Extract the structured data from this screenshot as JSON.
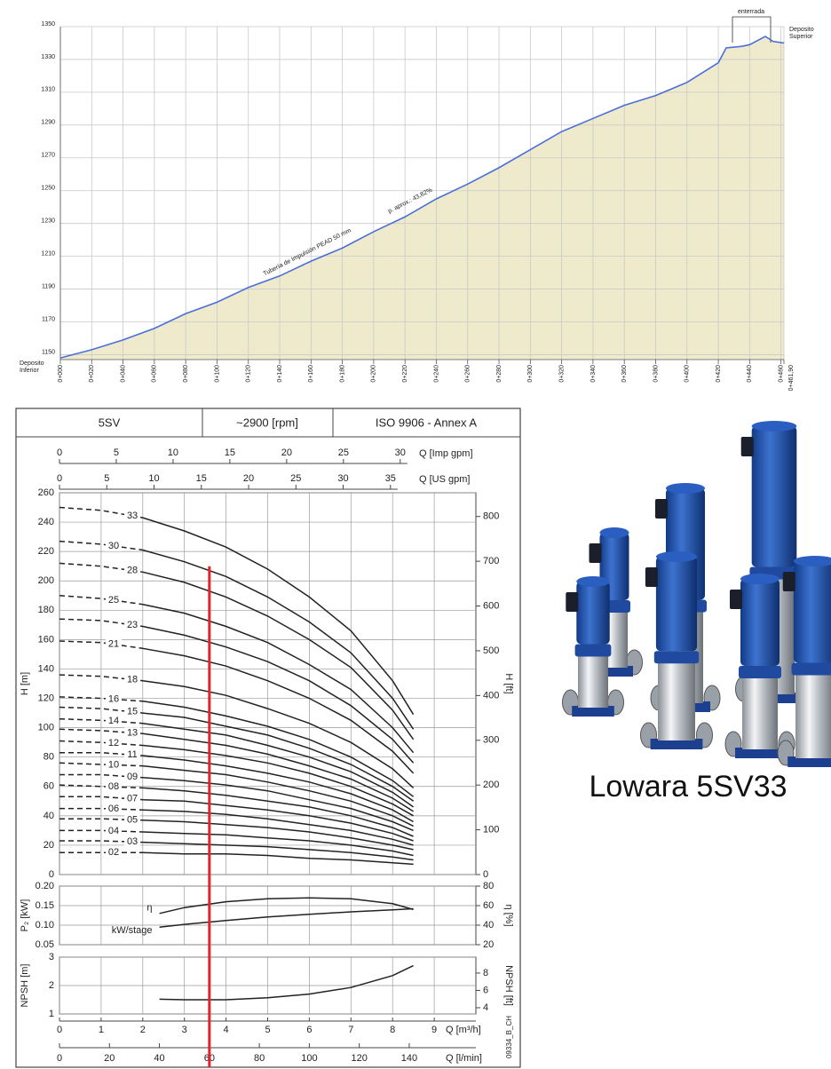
{
  "chart_data": [
    {
      "type": "area",
      "x": [
        0,
        20,
        40,
        60,
        80,
        100,
        120,
        140,
        160,
        180,
        200,
        220,
        240,
        260,
        280,
        300,
        320,
        340,
        360,
        380,
        400,
        420,
        425,
        435,
        440,
        450,
        455,
        461.9
      ],
      "values": [
        1148,
        1153,
        1159,
        1166,
        1175,
        1182,
        1191,
        1198,
        1207,
        1215,
        1225,
        1234,
        1245,
        1254,
        1264,
        1275,
        1286,
        1294,
        1302,
        1308,
        1316,
        1328,
        1337,
        1338,
        1339,
        1344,
        1341,
        1340
      ],
      "xlim": [
        0,
        461.9
      ],
      "ylim": [
        1147,
        1350
      ],
      "xticks": [
        {
          "value": 0,
          "label": "0+000"
        },
        {
          "value": 20,
          "label": "0+020"
        },
        {
          "value": 40,
          "label": "0+040"
        },
        {
          "value": 60,
          "label": "0+060"
        },
        {
          "value": 80,
          "label": "0+080"
        },
        {
          "value": 100,
          "label": "0+100"
        },
        {
          "value": 120,
          "label": "0+120"
        },
        {
          "value": 140,
          "label": "0+140"
        },
        {
          "value": 160,
          "label": "0+160"
        },
        {
          "value": 180,
          "label": "0+180"
        },
        {
          "value": 200,
          "label": "0+200"
        },
        {
          "value": 220,
          "label": "0+220"
        },
        {
          "value": 240,
          "label": "0+240"
        },
        {
          "value": 260,
          "label": "0+260"
        },
        {
          "value": 280,
          "label": "0+280"
        },
        {
          "value": 300,
          "label": "0+300"
        },
        {
          "value": 320,
          "label": "0+320"
        },
        {
          "value": 340,
          "label": "0+340"
        },
        {
          "value": 360,
          "label": "0+360"
        },
        {
          "value": 380,
          "label": "0+380"
        },
        {
          "value": 400,
          "label": "0+400"
        },
        {
          "value": 420,
          "label": "0+420"
        },
        {
          "value": 440,
          "label": "0+440"
        },
        {
          "value": 460,
          "label": "0+460"
        },
        {
          "value": 461.9,
          "label": "0+461,90"
        }
      ],
      "yticks": [
        1150,
        1170,
        1190,
        1210,
        1230,
        1250,
        1270,
        1290,
        1310,
        1330,
        1350
      ],
      "grid": true,
      "color": "#4a6fd8",
      "fill": "#eeeacb",
      "annotations": {
        "pipe": "Tubería de Impulsión PEAD 50 mm",
        "slope": "p. aprox.: 43,82%",
        "buried": "enterrada",
        "upper_tank": [
          "Deposito",
          "Superior"
        ],
        "lower_tank": [
          "Deposito",
          "Inferior"
        ]
      }
    },
    {
      "type": "line",
      "header": [
        "5SV",
        "~2900 [rpm]",
        "ISO 9906 - Annex A"
      ],
      "ylabel": "H [m]",
      "y2label": "H [ft]",
      "xlim": [
        0,
        10
      ],
      "ylim": [
        0,
        260
      ],
      "yticks": [
        0,
        20,
        40,
        60,
        80,
        100,
        120,
        140,
        160,
        180,
        200,
        220,
        240,
        260
      ],
      "y2lim": [
        0,
        853
      ],
      "y2ticks": [
        0,
        100,
        200,
        300,
        400,
        500,
        600,
        700,
        800
      ],
      "top_axes": [
        {
          "label": "Q [Imp gpm]",
          "xlim": [
            0,
            36.66
          ],
          "xticks": [
            0,
            5,
            10,
            15,
            20,
            25,
            30
          ]
        },
        {
          "label": "Q [US gpm]",
          "xlim": [
            0,
            44.03
          ],
          "xticks": [
            0,
            5,
            10,
            15,
            20,
            25,
            30,
            35
          ]
        }
      ],
      "x": [
        0,
        1,
        2,
        3,
        4,
        5,
        6,
        7,
        8,
        8.5
      ],
      "dashed_until": 2,
      "color": "#222",
      "grid": true,
      "series": [
        {
          "name": "33",
          "values": [
            250,
            248,
            243,
            234,
            223,
            208,
            189,
            166,
            132,
            109
          ]
        },
        {
          "name": "30",
          "values": [
            227,
            225,
            221,
            213,
            203,
            189,
            172,
            151,
            120,
            99
          ]
        },
        {
          "name": "28",
          "values": [
            212,
            210,
            206,
            199,
            189,
            176,
            160,
            141,
            112,
            92
          ]
        },
        {
          "name": "25",
          "values": [
            190,
            188,
            184,
            178,
            169,
            158,
            143,
            126,
            100,
            83
          ]
        },
        {
          "name": "23",
          "values": [
            174,
            173,
            169,
            163,
            155,
            145,
            132,
            115,
            92,
            76
          ]
        },
        {
          "name": "21",
          "values": [
            159,
            158,
            154,
            149,
            142,
            132,
            120,
            105,
            84,
            69
          ]
        },
        {
          "name": "18",
          "values": [
            136,
            135,
            132,
            128,
            122,
            113,
            103,
            90,
            72,
            59
          ]
        },
        {
          "name": "16",
          "values": [
            121,
            120,
            118,
            114,
            108,
            101,
            92,
            80,
            64,
            53
          ]
        },
        {
          "name": "15",
          "values": [
            114,
            113,
            110,
            107,
            101,
            95,
            86,
            75,
            60,
            50
          ]
        },
        {
          "name": "14",
          "values": [
            106,
            105,
            103,
            99,
            95,
            88,
            80,
            70,
            56,
            46
          ]
        },
        {
          "name": "13",
          "values": [
            99,
            98,
            96,
            92,
            88,
            82,
            74,
            65,
            52,
            43
          ]
        },
        {
          "name": "12",
          "values": [
            91,
            90,
            88,
            85,
            81,
            76,
            69,
            60,
            48,
            40
          ]
        },
        {
          "name": "11",
          "values": [
            83,
            83,
            81,
            78,
            74,
            69,
            63,
            55,
            44,
            36
          ]
        },
        {
          "name": "10",
          "values": [
            76,
            75,
            74,
            71,
            68,
            63,
            57,
            50,
            40,
            33
          ]
        },
        {
          "name": "09",
          "values": [
            68,
            68,
            66,
            64,
            61,
            57,
            51,
            45,
            36,
            30
          ]
        },
        {
          "name": "08",
          "values": [
            61,
            60,
            59,
            57,
            54,
            50,
            46,
            40,
            32,
            26
          ]
        },
        {
          "name": "07",
          "values": [
            53,
            53,
            51,
            50,
            47,
            44,
            40,
            35,
            28,
            23
          ]
        },
        {
          "name": "06",
          "values": [
            45,
            45,
            44,
            43,
            41,
            38,
            34,
            30,
            24,
            20
          ]
        },
        {
          "name": "05",
          "values": [
            38,
            38,
            37,
            36,
            34,
            32,
            29,
            25,
            20,
            17
          ]
        },
        {
          "name": "04",
          "values": [
            30,
            30,
            29,
            28,
            27,
            25,
            23,
            20,
            16,
            13
          ]
        },
        {
          "name": "03",
          "values": [
            23,
            23,
            22,
            21,
            20,
            19,
            17,
            15,
            12,
            10
          ]
        },
        {
          "name": "02",
          "values": [
            15,
            15,
            15,
            14,
            14,
            13,
            11,
            10,
            8,
            7
          ]
        }
      ],
      "operating_point": {
        "q": 3.6,
        "h": 210,
        "color": "#e3242b"
      }
    },
    {
      "type": "line",
      "ylabel": "P₂ [kW]",
      "y2label": "η [%]",
      "xlim": [
        0,
        10
      ],
      "ylim": [
        0.05,
        0.2
      ],
      "yticks": [
        0.05,
        {
          "value": 0.1,
          "label": "0.10"
        },
        0.15,
        {
          "value": 0.2,
          "label": "0.20"
        }
      ],
      "y2lim": [
        20,
        80
      ],
      "y2ticks": [
        20,
        40,
        60,
        80
      ],
      "x": [
        2.4,
        3,
        4,
        5,
        6,
        7,
        8,
        8.5
      ],
      "color": "#222",
      "series": [
        {
          "name": "η",
          "axis": "y2",
          "values": [
            52,
            58,
            64,
            67,
            68,
            67,
            62,
            56
          ]
        },
        {
          "name": "kW/stage",
          "values": [
            0.095,
            0.102,
            0.112,
            0.121,
            0.128,
            0.134,
            0.139,
            0.142
          ]
        }
      ]
    },
    {
      "type": "line",
      "ylabel": "NPSH [m]",
      "y2label": "NPSH [ft]",
      "xlim": [
        0,
        10
      ],
      "ylim": [
        1,
        3
      ],
      "yticks": [
        1,
        2,
        3
      ],
      "y2lim": [
        3.28,
        9.84
      ],
      "y2ticks": [
        4,
        6,
        8
      ],
      "x": [
        2.4,
        3,
        4,
        5,
        6,
        7,
        8,
        8.5
      ],
      "color": "#222",
      "series": [
        {
          "values": [
            1.52,
            1.5,
            1.5,
            1.57,
            1.7,
            1.93,
            2.35,
            2.7
          ]
        }
      ],
      "xlabel": "Q [m³/h]",
      "xticks": [
        0,
        1,
        2,
        3,
        4,
        5,
        6,
        7,
        8,
        9
      ],
      "x2label": "Q [l/min]",
      "x2lim": [
        0,
        166.67
      ],
      "x2ticks": [
        0,
        20,
        40,
        60,
        80,
        100,
        120,
        140
      ],
      "code": "09334_B_CH"
    }
  ],
  "photo": {
    "caption": "Lowara 5SV33"
  }
}
